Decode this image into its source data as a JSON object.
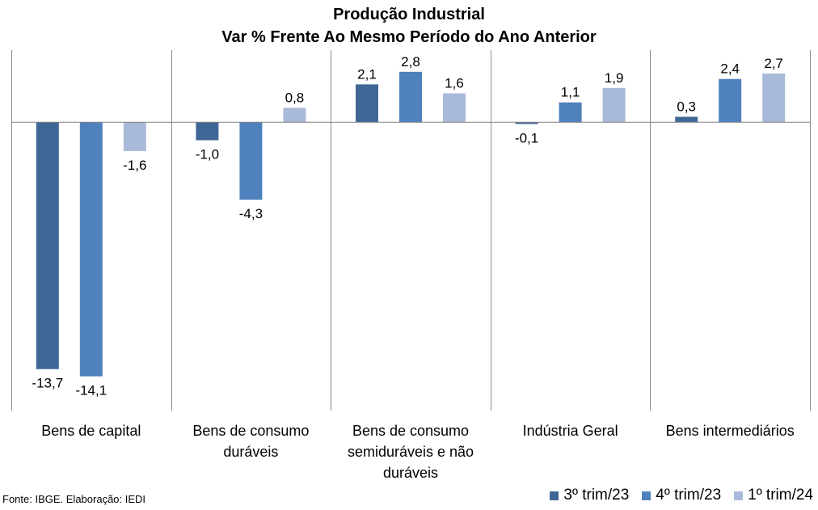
{
  "chart_data": {
    "type": "bar",
    "title": "Produção Industrial",
    "subtitle": "Var % Frente Ao Mesmo Período do Ano Anterior",
    "categories": [
      [
        "Bens de capital"
      ],
      [
        "Bens de consumo",
        "duráveis"
      ],
      [
        "Bens de consumo",
        "semiduráveis e não",
        "duráveis"
      ],
      [
        "Indústria Geral"
      ],
      [
        "Bens intermediários"
      ]
    ],
    "series": [
      {
        "name": "3º trim/23",
        "color": "#3F6796",
        "values": [
          -13.7,
          -1.0,
          2.1,
          -0.1,
          0.3
        ],
        "labels": [
          "-13,7",
          "-1,0",
          "2,1",
          "-0,1",
          "0,3"
        ]
      },
      {
        "name": "4º trim/23",
        "color": "#4F81BD",
        "values": [
          -14.1,
          -4.3,
          2.8,
          1.1,
          2.4
        ],
        "labels": [
          "-14,1",
          "-4,3",
          "2,8",
          "1,1",
          "2,4"
        ]
      },
      {
        "name": "1º trim/24",
        "color": "#A9B9D9",
        "values": [
          -1.6,
          0.8,
          1.6,
          1.9,
          2.7
        ],
        "labels": [
          "-1,6",
          "0,8",
          "1,6",
          "1,9",
          "2,7"
        ]
      }
    ],
    "ylim": [
      -16,
      4
    ],
    "grid": false,
    "legend_position": "bottom-right"
  },
  "source": "Fonte: IBGE. Elaboração: IEDI"
}
